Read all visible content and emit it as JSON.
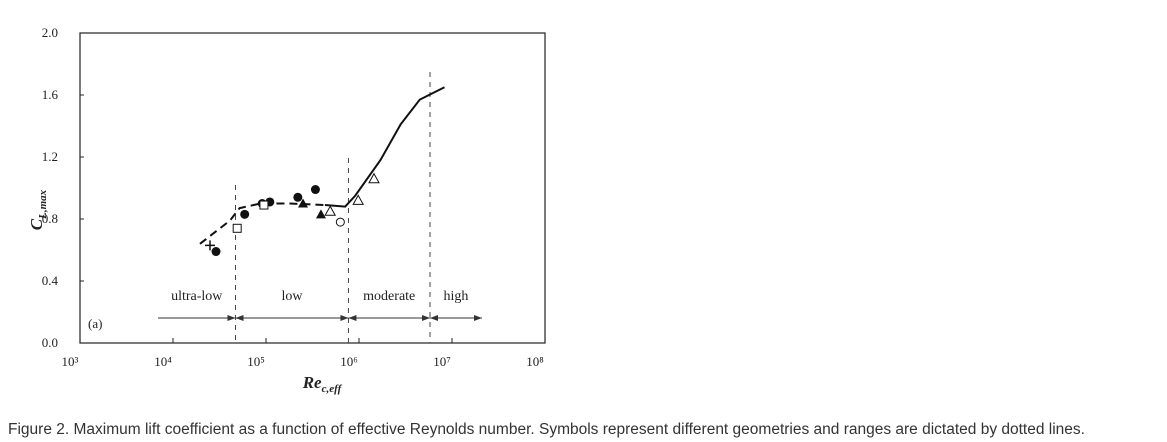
{
  "chart_data": {
    "type": "scatter",
    "y_label": {
      "main": "C",
      "sub": "L,max"
    },
    "x_label": {
      "main": "Re",
      "sub": "c,eff"
    },
    "panel_label": "(a)",
    "xlog": true,
    "xlim": [
      1000,
      100000000
    ],
    "ylim": [
      0,
      2
    ],
    "xticks": [
      {
        "value": 1000,
        "label": "10³"
      },
      {
        "value": 10000,
        "label": "10⁴"
      },
      {
        "value": 100000,
        "label": "10⁵"
      },
      {
        "value": 1000000,
        "label": "10⁶"
      },
      {
        "value": 10000000,
        "label": "10⁷"
      },
      {
        "value": 100000000,
        "label": "10⁸"
      }
    ],
    "yticks": [
      {
        "value": 0,
        "label": "0.0"
      },
      0.4,
      0.8,
      1.2,
      1.6,
      {
        "value": 2,
        "label": "2.0"
      }
    ],
    "regions": {
      "boundaries": [
        47000,
        770000,
        5800000
      ],
      "labels": [
        "ultra-low",
        "low",
        "moderate",
        "high"
      ]
    },
    "series": [
      {
        "style": "dashed",
        "color": "#111",
        "x": [
          19500,
          41000,
          52000,
          87000,
          180000,
          430000
        ],
        "values": [
          0.64,
          0.79,
          0.87,
          0.9,
          0.9,
          0.89
        ]
      },
      {
        "style": "solid",
        "color": "#111",
        "x": [
          430000,
          710000,
          910000,
          1700000,
          2800000,
          4500000,
          8300000
        ],
        "values": [
          0.89,
          0.88,
          0.95,
          1.18,
          1.41,
          1.57,
          1.65
        ]
      },
      {
        "marker": "filled-circle",
        "color": "#111",
        "x": [
          29000,
          59000,
          91000,
          110000,
          220000,
          340000
        ],
        "values": [
          0.59,
          0.83,
          0.9,
          0.91,
          0.94,
          0.99
        ]
      },
      {
        "marker": "open-square",
        "color": "#111",
        "x": [
          49000,
          95000
        ],
        "values": [
          0.74,
          0.89
        ]
      },
      {
        "marker": "filled-triangle",
        "color": "#111",
        "x": [
          250000,
          390000
        ],
        "values": [
          0.9,
          0.83
        ]
      },
      {
        "marker": "open-triangle",
        "color": "#111",
        "x": [
          490000,
          980000,
          1450000
        ],
        "values": [
          0.85,
          0.92,
          1.06
        ]
      },
      {
        "marker": "open-circle",
        "color": "#111",
        "x": [
          630000
        ],
        "values": [
          0.78
        ]
      },
      {
        "marker": "plus",
        "color": "#111",
        "x": [
          25000
        ],
        "values": [
          0.63
        ]
      }
    ]
  },
  "caption": "Figure 2. Maximum lift coefficient as a function of effective Reynolds number. Symbols represent different geometries and ranges are dictated by dotted lines."
}
